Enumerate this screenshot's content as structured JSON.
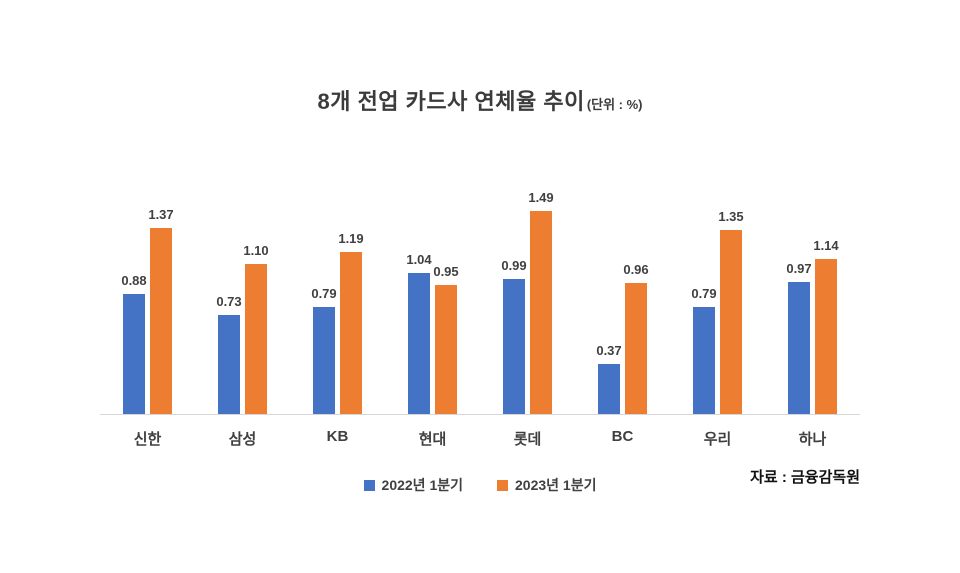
{
  "title": {
    "text": "8개 전업 카드사 연체율 추이",
    "unit": "(단위 : %)"
  },
  "source": "자료 : 금융감독원",
  "legend": [
    {
      "label": "2022년 1분기",
      "color": "#4472C4"
    },
    {
      "label": "2023년 1분기",
      "color": "#ED7D31"
    }
  ],
  "chart_data": {
    "type": "bar",
    "title": "8개 전업 카드사 연체율 추이",
    "unit_label": "(단위 : %)",
    "categories": [
      "신한",
      "삼성",
      "KB",
      "현대",
      "롯데",
      "BC",
      "우리",
      "하나"
    ],
    "series": [
      {
        "name": "2022년 1분기",
        "color": "#4472C4",
        "values": [
          0.88,
          0.73,
          0.79,
          1.04,
          0.99,
          0.37,
          0.79,
          0.97
        ]
      },
      {
        "name": "2023년 1분기",
        "color": "#ED7D31",
        "values": [
          1.37,
          1.1,
          1.19,
          0.95,
          1.49,
          0.96,
          1.35,
          1.14
        ]
      }
    ],
    "ylim": [
      0,
      2.0
    ],
    "grid": false,
    "value_labels": true,
    "legend_position": "bottom",
    "source_note": "자료 : 금융감독원"
  }
}
